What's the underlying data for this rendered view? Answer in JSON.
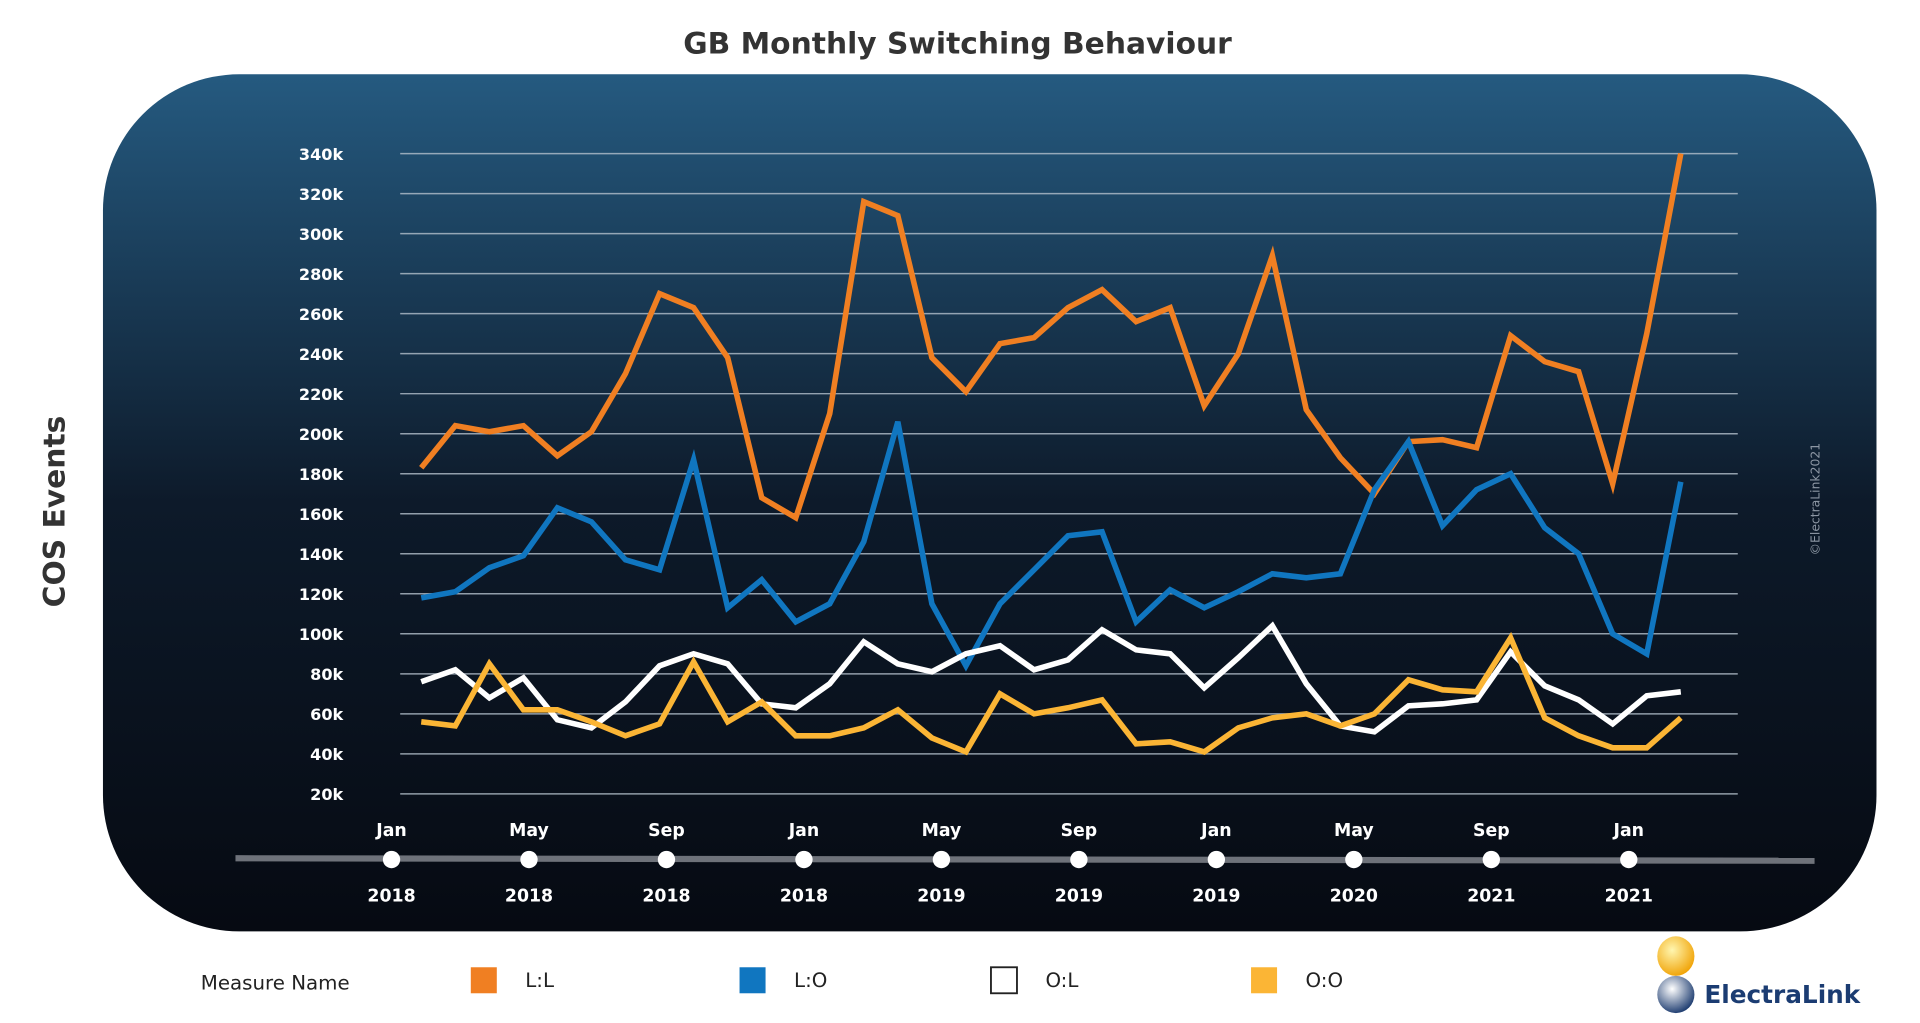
{
  "chart_data": {
    "type": "line",
    "title": "GB Monthly Switching Behaviour",
    "ylabel": "COS Events",
    "xlabel": "",
    "ylim": [
      20000,
      340000
    ],
    "y_ticks": [
      "20k",
      "40k",
      "60k",
      "80k",
      "100k",
      "120k",
      "140k",
      "160k",
      "180k",
      "200k",
      "220k",
      "240k",
      "260k",
      "280k",
      "300k",
      "320k",
      "340k"
    ],
    "x_ticks": [
      {
        "month": "Jan",
        "year": "2018"
      },
      {
        "month": "May",
        "year": "2018"
      },
      {
        "month": "Sep",
        "year": "2018"
      },
      {
        "month": "Jan",
        "year": "2018"
      },
      {
        "month": "May",
        "year": "2019"
      },
      {
        "month": "Sep",
        "year": "2019"
      },
      {
        "month": "Jan",
        "year": "2019"
      },
      {
        "month": "May",
        "year": "2020"
      },
      {
        "month": "Sep",
        "year": "2021"
      },
      {
        "month": "Jan",
        "year": "2021"
      }
    ],
    "grid": true,
    "legend_placement": "bottom",
    "legend_title": "Measure Name",
    "x": [
      "2018-02",
      "2018-03",
      "2018-04",
      "2018-05",
      "2018-06",
      "2018-07",
      "2018-08",
      "2018-09",
      "2018-10",
      "2018-11",
      "2018-12",
      "2019-01",
      "2019-02",
      "2019-03",
      "2019-04",
      "2019-05",
      "2019-06",
      "2019-07",
      "2019-08",
      "2019-09",
      "2019-10",
      "2019-11",
      "2019-12",
      "2020-01",
      "2020-02",
      "2020-03",
      "2020-04",
      "2020-05",
      "2020-06",
      "2020-07",
      "2020-08",
      "2020-09",
      "2020-10",
      "2020-11",
      "2020-12",
      "2021-01",
      "2021-02",
      "2021-03"
    ],
    "series": [
      {
        "name": "L:L",
        "color": "#f07f22",
        "values": [
          183000,
          204000,
          201000,
          204000,
          189000,
          201000,
          230000,
          270000,
          263000,
          238000,
          168000,
          158000,
          210000,
          316000,
          309000,
          238000,
          221000,
          245000,
          248000,
          263000,
          272000,
          256000,
          263000,
          214000,
          240000,
          289000,
          212000,
          188000,
          170000,
          196000,
          197000,
          193000,
          249000,
          236000,
          231000,
          175000,
          250000,
          340000
        ]
      },
      {
        "name": "L:O",
        "color": "#1076c0",
        "values": [
          118000,
          121000,
          133000,
          139000,
          163000,
          156000,
          137000,
          132000,
          187000,
          113000,
          127000,
          106000,
          115000,
          146000,
          206000,
          115000,
          84000,
          115000,
          132000,
          149000,
          151000,
          106000,
          122000,
          113000,
          121000,
          130000,
          128000,
          130000,
          172000,
          196000,
          154000,
          172000,
          180000,
          153000,
          140000,
          100000,
          90000,
          176000
        ]
      },
      {
        "name": "O:L",
        "color": "#ffffff",
        "values": [
          76000,
          82000,
          68000,
          78000,
          57000,
          53000,
          66000,
          84000,
          90000,
          85000,
          65000,
          63000,
          75000,
          96000,
          85000,
          81000,
          90000,
          94000,
          82000,
          87000,
          102000,
          92000,
          90000,
          73000,
          88000,
          104000,
          75000,
          54000,
          51000,
          64000,
          65000,
          67000,
          91000,
          74000,
          67000,
          55000,
          69000,
          71000
        ]
      },
      {
        "name": "O:O",
        "color": "#fbb535",
        "values": [
          56000,
          54000,
          85000,
          62000,
          62000,
          56000,
          49000,
          55000,
          86000,
          56000,
          66000,
          49000,
          49000,
          53000,
          62000,
          48000,
          41000,
          70000,
          60000,
          63000,
          67000,
          45000,
          46000,
          41000,
          53000,
          58000,
          60000,
          54000,
          60000,
          77000,
          72000,
          71000,
          98000,
          58000,
          49000,
          43000,
          43000,
          58000
        ]
      }
    ]
  },
  "watermark": "©ElectraLink2021",
  "logo": {
    "text": "ElectraLink"
  }
}
